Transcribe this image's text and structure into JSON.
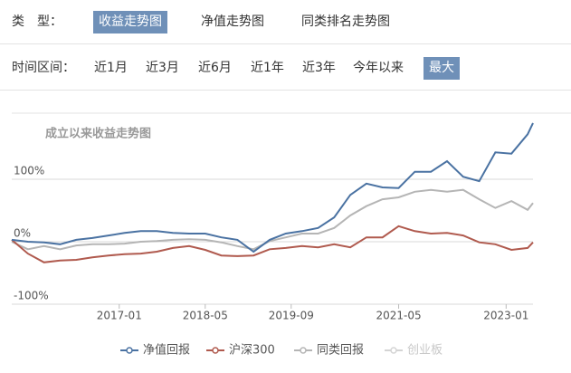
{
  "filter_rows": [
    {
      "label": "类　型：",
      "options": [
        "收益走势图",
        "净值走势图",
        "同类排名走势图"
      ],
      "selected": 0
    },
    {
      "label": "时间区间：",
      "options": [
        "近1月",
        "近3月",
        "近6月",
        "近1年",
        "近3年",
        "今年以来",
        "最大"
      ],
      "selected": 6
    }
  ],
  "chart_data": {
    "type": "line",
    "title": "成立以来收益走势图",
    "x": [
      "2015-05",
      "2015-08",
      "2015-11",
      "2016-02",
      "2016-05",
      "2016-08",
      "2016-11",
      "2017-02",
      "2017-05",
      "2017-08",
      "2017-11",
      "2018-02",
      "2018-05",
      "2018-08",
      "2018-11",
      "2019-02",
      "2019-05",
      "2019-08",
      "2019-11",
      "2020-02",
      "2020-05",
      "2020-08",
      "2020-11",
      "2021-02",
      "2021-05",
      "2021-08",
      "2021-11",
      "2022-02",
      "2022-05",
      "2022-08",
      "2022-11",
      "2023-02",
      "2023-05",
      "2023-06"
    ],
    "xlim": [
      "2015-05",
      "2023-06"
    ],
    "xticks": [
      "2017-01",
      "2018-05",
      "2019-09",
      "2021-05",
      "2023-01"
    ],
    "ylim": [
      -100,
      200
    ],
    "yticks": [
      {
        "value": 100,
        "label": "100%"
      },
      {
        "value": 0,
        "label": "0%"
      },
      {
        "value": -100,
        "label": "-100%"
      }
    ],
    "grid": true,
    "legend": "bottom",
    "series": [
      {
        "name": "净值回报",
        "color": "#4a72a2",
        "values": [
          3,
          0,
          -1,
          -4,
          3,
          6,
          10,
          14,
          17,
          17,
          14,
          13,
          13,
          7,
          3,
          -16,
          3,
          13,
          17,
          22,
          39,
          75,
          93,
          87,
          86,
          112,
          112,
          129,
          104,
          97,
          143,
          141,
          172,
          190
        ]
      },
      {
        "name": "沪深300",
        "color": "#b05a4e",
        "values": [
          3,
          -19,
          -33,
          -30,
          -29,
          -25,
          -22,
          -20,
          -19,
          -16,
          -10,
          -7,
          -13,
          -22,
          -23,
          -22,
          -12,
          -10,
          -7,
          -9,
          -4,
          -9,
          7,
          7,
          25,
          17,
          13,
          14,
          10,
          -1,
          -4,
          -13,
          -10,
          -1
        ]
      },
      {
        "name": "同类回报",
        "color": "#b5b5b5",
        "values": [
          0,
          -12,
          -7,
          -12,
          -6,
          -4,
          -4,
          -3,
          0,
          1,
          3,
          4,
          3,
          -1,
          -7,
          -12,
          1,
          7,
          13,
          13,
          22,
          42,
          57,
          68,
          71,
          80,
          83,
          80,
          83,
          68,
          54,
          65,
          51,
          62
        ]
      },
      {
        "name": "创业板",
        "color": "#d4d4d4",
        "visible": false
      }
    ]
  }
}
